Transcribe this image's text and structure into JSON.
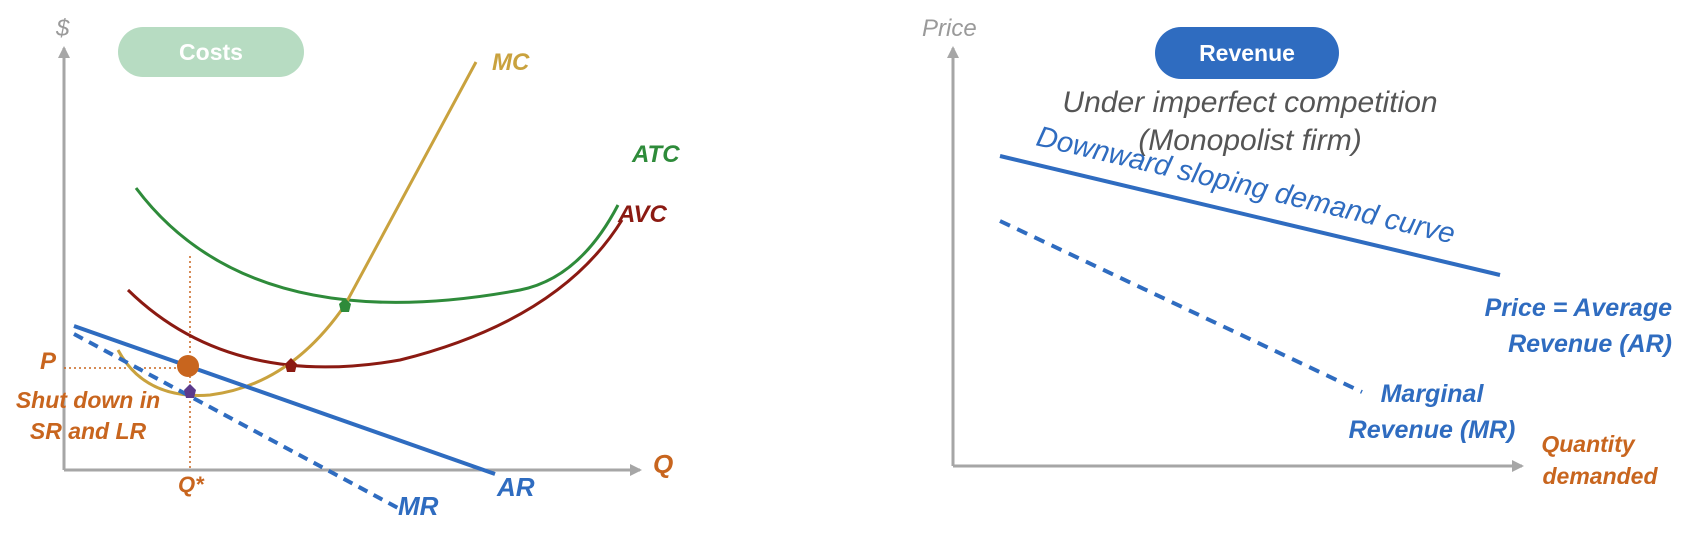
{
  "left_panel": {
    "title": "Costs",
    "y_axis_label": "$",
    "x_axis_label": "Q",
    "curves": {
      "mc": "MC",
      "atc": "ATC",
      "avc": "AVC",
      "ar": "AR",
      "mr": "MR"
    },
    "price_label": "P",
    "quantity_label": "Q*",
    "shutdown_line1": "Shut down in",
    "shutdown_line2": "SR and LR"
  },
  "right_panel": {
    "title": "Revenue",
    "y_axis_label": "Price",
    "subtitle_line1": "Under imperfect competition",
    "subtitle_line2": "(Monopolist firm)",
    "demand_label": "Downward sloping demand curve",
    "ar_line1": "Price = Average",
    "ar_line2": "Revenue (AR)",
    "mr_line1": "Marginal",
    "mr_line2": "Revenue (MR)",
    "x_line1": "Quantity",
    "x_line2": "demanded"
  },
  "colors": {
    "axis": "#a6a6a6",
    "mc": "#c9a23e",
    "atc": "#2e8b3a",
    "avc": "#8b1a12",
    "revenue_blue": "#2f6cc0",
    "point_orange": "#c8651e",
    "guide_orange": "#c8651e",
    "costs_pill": "#b7dcc2",
    "revenue_pill": "#2f6cc0",
    "mark_purple": "#5b3a8c"
  }
}
